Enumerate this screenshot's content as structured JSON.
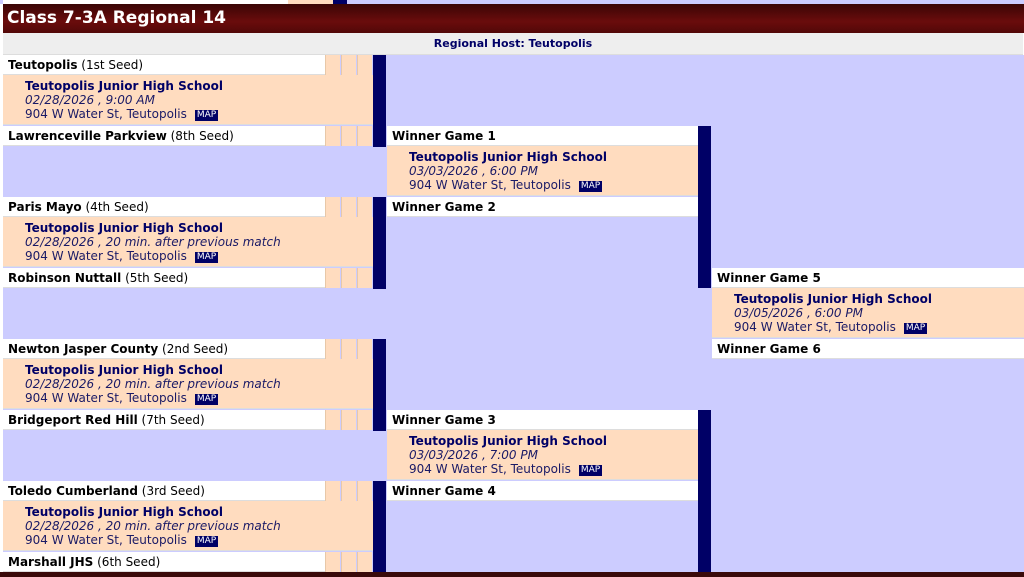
{
  "title": "Class 7-3A Regional 14",
  "host": "Regional Host: Teutopolis",
  "map_label": "MAP",
  "colors": {
    "title_bar": "#5a0a0a",
    "bracket_bg": "#ccccff",
    "info_bg": "#ffdcbf",
    "connector": "#000066"
  },
  "rounds": [
    {
      "games": [
        {
          "top_name": "Teutopolis",
          "top_seed": "(1st Seed)",
          "bottom_name": "Lawrenceville Parkview",
          "bottom_seed": "(8th Seed)",
          "location": "Teutopolis Junior High School",
          "datetime": "02/28/2026 , 9:00 AM",
          "address": "904 W Water St, Teutopolis"
        },
        {
          "top_name": "Paris Mayo",
          "top_seed": "(4th Seed)",
          "bottom_name": "Robinson Nuttall",
          "bottom_seed": "(5th Seed)",
          "location": "Teutopolis Junior High School",
          "datetime": "02/28/2026 , 20 min. after previous match",
          "address": "904 W Water St, Teutopolis"
        },
        {
          "top_name": "Newton Jasper County",
          "top_seed": "(2nd Seed)",
          "bottom_name": "Bridgeport Red Hill",
          "bottom_seed": "(7th Seed)",
          "location": "Teutopolis Junior High School",
          "datetime": "02/28/2026 , 20 min. after previous match",
          "address": "904 W Water St, Teutopolis"
        },
        {
          "top_name": "Toledo Cumberland",
          "top_seed": "(3rd Seed)",
          "bottom_name": "Marshall JHS",
          "bottom_seed": "(6th Seed)",
          "location": "Teutopolis Junior High School",
          "datetime": "02/28/2026 , 20 min. after previous match",
          "address": "904 W Water St, Teutopolis"
        }
      ]
    },
    {
      "games": [
        {
          "top_name": "Winner Game 1",
          "top_seed": "",
          "bottom_name": "Winner Game 2",
          "bottom_seed": "",
          "location": "Teutopolis Junior High School",
          "datetime": "03/03/2026 , 6:00 PM",
          "address": "904 W Water St, Teutopolis"
        },
        {
          "top_name": "Winner Game 3",
          "top_seed": "",
          "bottom_name": "Winner Game 4",
          "bottom_seed": "",
          "location": "Teutopolis Junior High School",
          "datetime": "03/03/2026 , 7:00 PM",
          "address": "904 W Water St, Teutopolis"
        }
      ]
    },
    {
      "games": [
        {
          "top_name": "Winner Game 5",
          "top_seed": "",
          "bottom_name": "Winner Game 6",
          "bottom_seed": "",
          "location": "Teutopolis Junior High School",
          "datetime": "03/05/2026 , 6:00 PM",
          "address": "904 W Water St, Teutopolis"
        }
      ]
    }
  ]
}
